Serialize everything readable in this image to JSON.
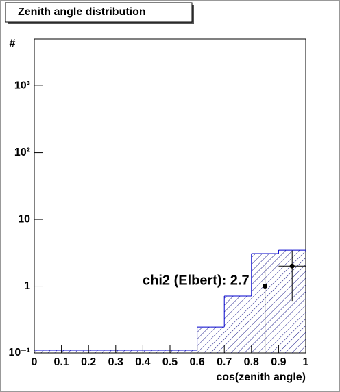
{
  "chart_data": {
    "type": "histogram",
    "title": "Zenith angle distribution",
    "xlabel": "cos(zenith angle)",
    "ylabel": "#",
    "bins": [
      0,
      0.05,
      0.1,
      0.15,
      0.2,
      0.25,
      0.3,
      0.35,
      0.4,
      0.45,
      0.5,
      0.55,
      0.6,
      0.65,
      0.7,
      0.75,
      0.8,
      0.85,
      0.9,
      0.95,
      1
    ],
    "values": [
      0.11,
      0.11,
      0.11,
      0.11,
      0.11,
      0.11,
      0.11,
      0.11,
      0.11,
      0.11,
      0.11,
      0.11,
      0.245,
      0.245,
      0.71,
      0.71,
      3.07,
      3.07,
      3.45,
      3.45
    ],
    "color": "#0000cc",
    "points": {
      "x": [
        0.85,
        0.95
      ],
      "y": [
        1,
        2
      ],
      "xerr": [
        0.05,
        0.05
      ],
      "yerr": [
        1,
        1.4
      ],
      "color": "#000000"
    },
    "annotation": "chi2 (Elbert): 2.7",
    "xlim": [
      0,
      1
    ],
    "xticks": [
      0,
      0.1,
      0.2,
      0.3,
      0.4,
      0.5,
      0.6,
      0.7,
      0.8,
      0.9,
      1
    ],
    "ylim": [
      0.1,
      5000
    ],
    "log_y": true,
    "yticks": [
      {
        "value": 0.1,
        "label": "10⁻¹"
      },
      1,
      10,
      {
        "value": 100,
        "label": "10²"
      },
      {
        "value": 1000,
        "label": "10³"
      }
    ]
  }
}
